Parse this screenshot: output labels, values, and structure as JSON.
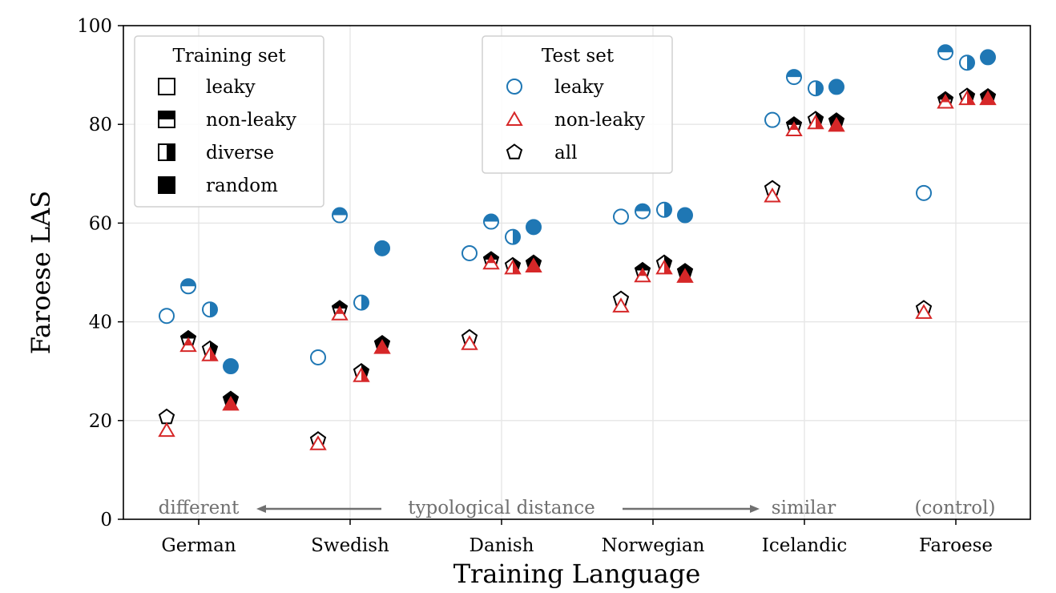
{
  "chart_data": {
    "type": "scatter",
    "xlabel": "Training Language",
    "ylabel": "Faroese LAS",
    "ylim": [
      0,
      100
    ],
    "yticks": [
      0,
      20,
      40,
      60,
      80,
      100
    ],
    "grid": true,
    "categories": [
      "German",
      "Swedish",
      "Danish",
      "Norwegian",
      "Icelandic",
      "Faroese"
    ],
    "training_sets": [
      "leaky",
      "non-leaky",
      "diverse",
      "random"
    ],
    "legend_training": {
      "title": "Training set",
      "entries": [
        {
          "label": "leaky",
          "fill": "none"
        },
        {
          "label": "non-leaky",
          "fill": "top"
        },
        {
          "label": "diverse",
          "fill": "right"
        },
        {
          "label": "random",
          "fill": "full"
        }
      ]
    },
    "legend_test": {
      "title": "Test set",
      "entries": [
        {
          "label": "leaky",
          "marker": "circle",
          "color": "#1f77b4"
        },
        {
          "label": "non-leaky",
          "marker": "triangle",
          "color": "#d62728"
        },
        {
          "label": "all",
          "marker": "pentagon",
          "color": "#000000"
        }
      ]
    },
    "series": [
      {
        "name": "leaky",
        "marker": "circle",
        "color": "#1f77b4",
        "values": {
          "German": [
            41.2,
            47.2,
            42.5,
            31.0
          ],
          "Swedish": [
            32.8,
            61.6,
            43.9,
            54.9
          ],
          "Danish": [
            53.9,
            60.3,
            57.2,
            59.2
          ],
          "Norwegian": [
            61.3,
            62.4,
            62.7,
            61.6
          ],
          "Icelandic": [
            80.9,
            89.6,
            87.3,
            87.6
          ],
          "Faroese": [
            66.1,
            94.6,
            92.5,
            93.6
          ]
        }
      },
      {
        "name": "non-leaky",
        "marker": "triangle",
        "color": "#d62728",
        "values": {
          "German": [
            18.0,
            35.2,
            33.3,
            23.3
          ],
          "Swedish": [
            15.3,
            41.6,
            29.1,
            34.8
          ],
          "Danish": [
            35.6,
            51.9,
            50.9,
            51.3
          ],
          "Norwegian": [
            43.2,
            49.3,
            50.9,
            49.2
          ],
          "Icelandic": [
            65.5,
            78.9,
            80.3,
            79.8
          ],
          "Faroese": [
            41.9,
            84.5,
            85.2,
            85.2
          ]
        }
      },
      {
        "name": "all",
        "marker": "pentagon",
        "color": "#000000",
        "values": {
          "German": [
            20.7,
            36.6,
            34.5,
            24.3
          ],
          "Swedish": [
            16.1,
            42.7,
            29.9,
            35.6
          ],
          "Danish": [
            36.8,
            52.6,
            51.4,
            51.9
          ],
          "Norwegian": [
            44.6,
            50.4,
            51.9,
            50.2
          ],
          "Icelandic": [
            67.0,
            79.9,
            81.0,
            80.7
          ],
          "Faroese": [
            42.7,
            85.0,
            85.7,
            85.6
          ]
        }
      }
    ],
    "annotations": {
      "different": "different",
      "typological": "typological distance",
      "similar": "similar",
      "control": "(control)"
    }
  }
}
